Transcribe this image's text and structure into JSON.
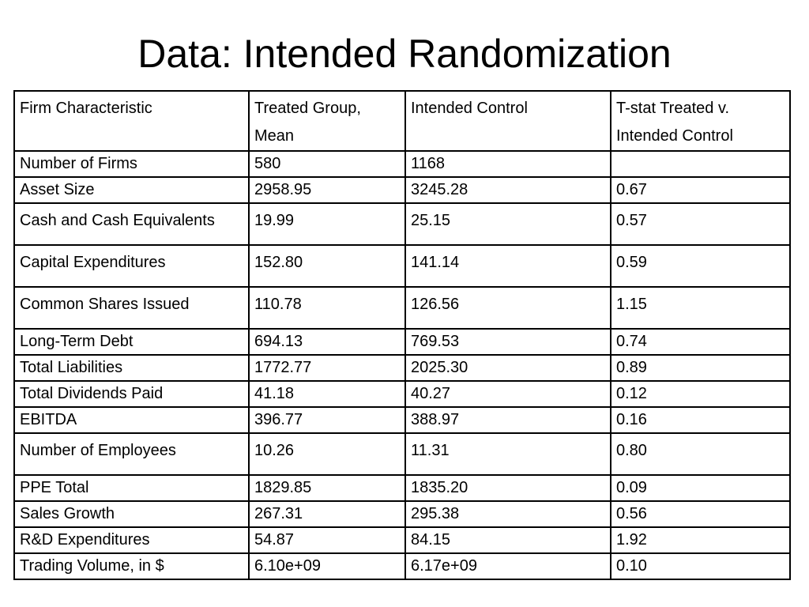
{
  "title": "Data: Intended Randomization",
  "table": {
    "headers": [
      "Firm Characteristic",
      "Treated Group, Mean",
      "Intended Control",
      "T-stat Treated v. Intended Control"
    ],
    "rows": [
      [
        "Number of Firms",
        "580",
        "1168",
        ""
      ],
      [
        "Asset Size",
        "2958.95",
        "3245.28",
        "0.67"
      ],
      [
        "Cash and Cash Equivalents",
        "19.99",
        "25.15",
        "0.57"
      ],
      [
        "Capital Expenditures",
        "152.80",
        "141.14",
        "0.59"
      ],
      [
        "Common Shares Issued",
        "110.78",
        "126.56",
        "1.15"
      ],
      [
        "Long-Term Debt",
        "694.13",
        "769.53",
        "0.74"
      ],
      [
        "Total Liabilities",
        "1772.77",
        "2025.30",
        "0.89"
      ],
      [
        "Total Dividends Paid",
        "41.18",
        "40.27",
        "0.12"
      ],
      [
        "EBITDA",
        "396.77",
        "388.97",
        "0.16"
      ],
      [
        "Number of Employees",
        "10.26",
        "11.31",
        "0.80"
      ],
      [
        "PPE Total",
        "1829.85",
        "1835.20",
        "0.09"
      ],
      [
        "Sales Growth",
        "267.31",
        "295.38",
        "0.56"
      ],
      [
        "R&D Expenditures",
        "54.87",
        "84.15",
        "1.92"
      ],
      [
        "Trading Volume, in $",
        "6.10e+09",
        "6.17e+09",
        "0.10"
      ]
    ]
  }
}
